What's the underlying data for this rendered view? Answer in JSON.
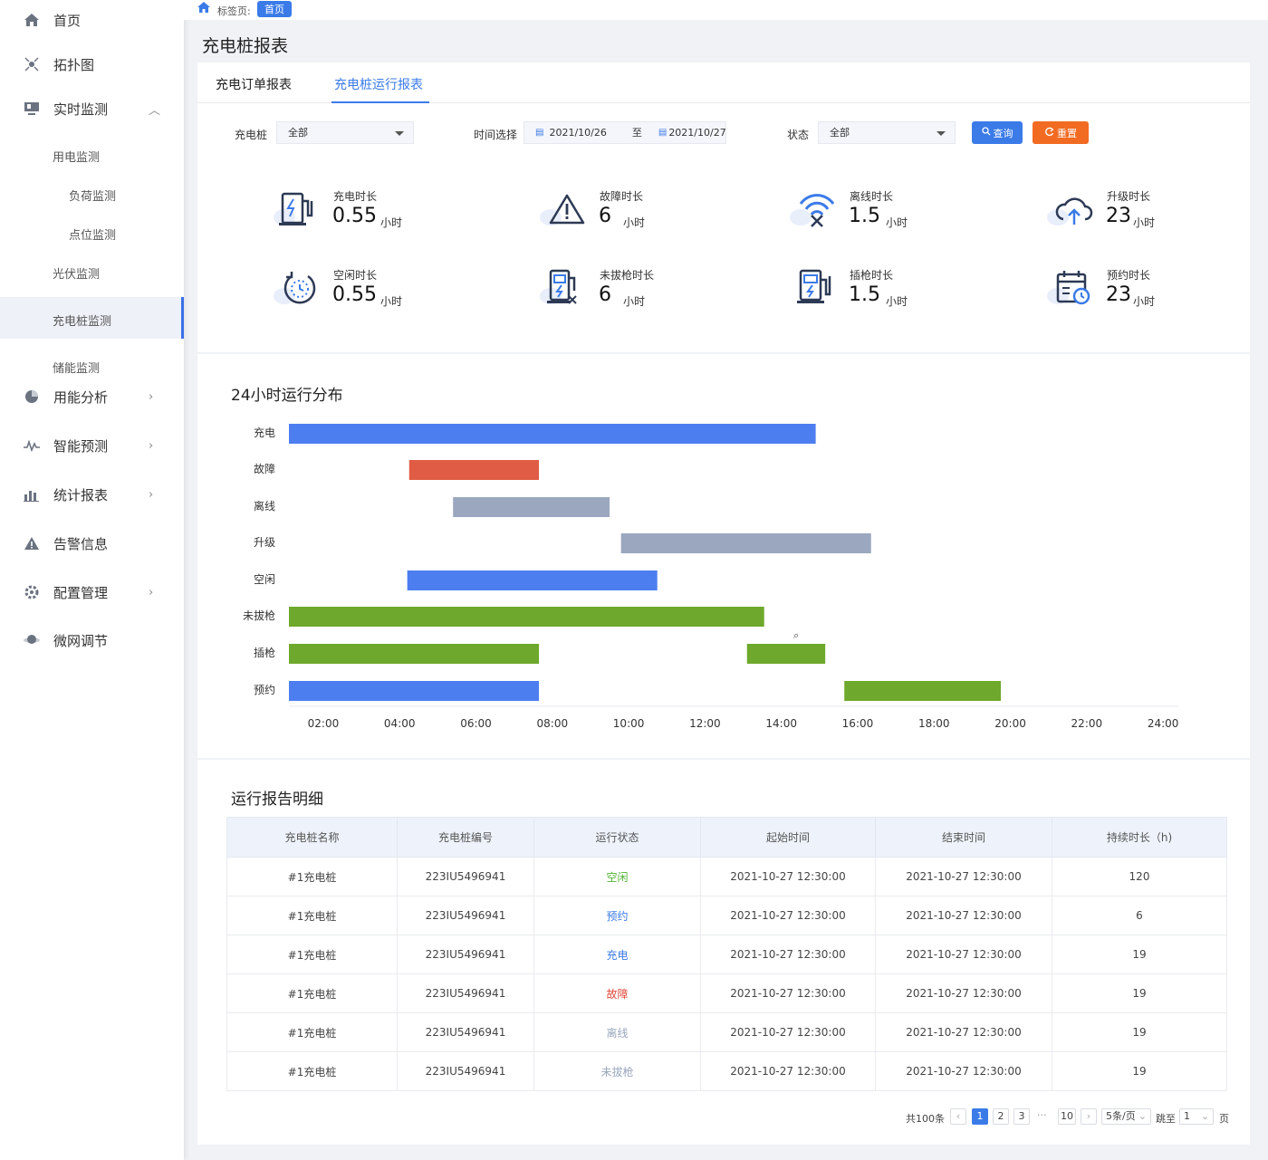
{
  "sidebar": {
    "home": "首页",
    "topology": "拓扑图",
    "realtime": "实时监测",
    "power_monitor": "用电监测",
    "load_monitor": "负荷监测",
    "point_monitor": "点位监测",
    "pv_monitor": "光伏监测",
    "charger_monitor": "充电桩监测",
    "storage_monitor": "储能监测",
    "energy_analysis": "用能分析",
    "forecast": "智能预测",
    "stats_report": "统计报表",
    "alarm": "告警信息",
    "config": "配置管理",
    "microgrid": "微网调节"
  },
  "breadcrumb": {
    "label": "标签页:",
    "tag": "首页"
  },
  "page_title": "充电桩报表",
  "tabs": [
    "充电订单报表",
    "充电桩运行报表"
  ],
  "filters": {
    "charger_label": "充电桩",
    "charger_value": "全部",
    "time_label": "时间选择",
    "date_from": "2021/10/26",
    "date_sep": "至",
    "date_to": "2021/10/27",
    "status_label": "状态",
    "status_value": "全部",
    "query": "查询",
    "reset": "重置"
  },
  "stats": [
    {
      "label": "充电时长",
      "value": "0.55",
      "unit": "小时",
      "icon": "charger-icon"
    },
    {
      "label": "故障时长",
      "value": "6",
      "unit": "小时",
      "icon": "warning-icon"
    },
    {
      "label": "离线时长",
      "value": "1.5",
      "unit": "小时",
      "icon": "wifi-off-icon"
    },
    {
      "label": "升级时长",
      "value": "23",
      "unit": "小时",
      "icon": "cloud-upload-icon"
    },
    {
      "label": "空闲时长",
      "value": "0.55",
      "unit": "小时",
      "icon": "timer-icon"
    },
    {
      "label": "未拔枪时长",
      "value": "6",
      "unit": "小时",
      "icon": "charger-unplug-icon"
    },
    {
      "label": "插枪时长",
      "value": "1.5",
      "unit": "小时",
      "icon": "charger-plug-icon"
    },
    {
      "label": "预约时长",
      "value": "23",
      "unit": "小时",
      "icon": "calendar-clock-icon"
    }
  ],
  "gantt_title": "24小时运行分布",
  "chart_data": {
    "type": "bar",
    "title": "24小时运行分布",
    "categories": [
      "充电",
      "故障",
      "离线",
      "升级",
      "空闲",
      "未拔枪",
      "插枪",
      "预约"
    ],
    "x_ticks": [
      "02:00",
      "04:00",
      "06:00",
      "08:00",
      "10:00",
      "12:00",
      "14:00",
      "16:00",
      "18:00",
      "20:00",
      "22:00",
      "24:00"
    ],
    "xlim": [
      1.1,
      24.4
    ],
    "segments": [
      {
        "category": "充电",
        "start": 1.1,
        "end": 14.9,
        "color": "#4d7ef0"
      },
      {
        "category": "故障",
        "start": 4.25,
        "end": 7.65,
        "color": "#e05c44"
      },
      {
        "category": "离线",
        "start": 5.4,
        "end": 9.5,
        "color": "#9aa7be"
      },
      {
        "category": "升级",
        "start": 9.8,
        "end": 16.35,
        "color": "#9aa7be"
      },
      {
        "category": "空闲",
        "start": 4.2,
        "end": 10.75,
        "color": "#4d7ef0"
      },
      {
        "category": "未拔枪",
        "start": 1.1,
        "end": 13.55,
        "color": "#6ea82c"
      },
      {
        "category": "插枪",
        "start": 1.1,
        "end": 7.65,
        "color": "#6ea82c"
      },
      {
        "category": "插枪",
        "start": 13.1,
        "end": 15.15,
        "color": "#6ea82c"
      },
      {
        "category": "预约",
        "start": 1.1,
        "end": 7.65,
        "color": "#4d7ef0"
      },
      {
        "category": "预约",
        "start": 15.65,
        "end": 19.75,
        "color": "#6ea82c"
      }
    ]
  },
  "table_title": "运行报告明细",
  "table": {
    "headers": [
      "充电桩名称",
      "充电桩编号",
      "运行状态",
      "起始时间",
      "结束时间",
      "持续时长（h)"
    ],
    "rows": [
      {
        "name": "#1充电桩",
        "code": "223IU5496941",
        "status": "空闲",
        "color": "#52b534",
        "start": "2021-10-27 12:30:00",
        "end": "2021-10-27 12:30:00",
        "dur": "120"
      },
      {
        "name": "#1充电桩",
        "code": "223IU5496941",
        "status": "预约",
        "color": "#3b7be8",
        "start": "2021-10-27 12:30:00",
        "end": "2021-10-27 12:30:00",
        "dur": "6"
      },
      {
        "name": "#1充电桩",
        "code": "223IU5496941",
        "status": "充电",
        "color": "#3b7be8",
        "start": "2021-10-27 12:30:00",
        "end": "2021-10-27 12:30:00",
        "dur": "19"
      },
      {
        "name": "#1充电桩",
        "code": "223IU5496941",
        "status": "故障",
        "color": "#e04a3a",
        "start": "2021-10-27 12:30:00",
        "end": "2021-10-27 12:30:00",
        "dur": "19"
      },
      {
        "name": "#1充电桩",
        "code": "223IU5496941",
        "status": "离线",
        "color": "#9aa7be",
        "start": "2021-10-27 12:30:00",
        "end": "2021-10-27 12:30:00",
        "dur": "19"
      },
      {
        "name": "#1充电桩",
        "code": "223IU5496941",
        "status": "未拔枪",
        "color": "#9aa7be",
        "start": "2021-10-27 12:30:00",
        "end": "2021-10-27 12:30:00",
        "dur": "19"
      }
    ]
  },
  "pagination": {
    "total": "共100条",
    "pages": [
      "1",
      "2",
      "3"
    ],
    "ellipsis": "···",
    "last": "10",
    "page_size": "5条/页",
    "jump_label": "跳至",
    "jump_value": "1",
    "page_suffix": "页"
  },
  "colors": {
    "accent": "#3b7be8",
    "reset": "#f26b22",
    "charge": "#4d7ef0",
    "fault": "#e05c44",
    "offline": "#9aa7be",
    "plug": "#6ea82c"
  }
}
